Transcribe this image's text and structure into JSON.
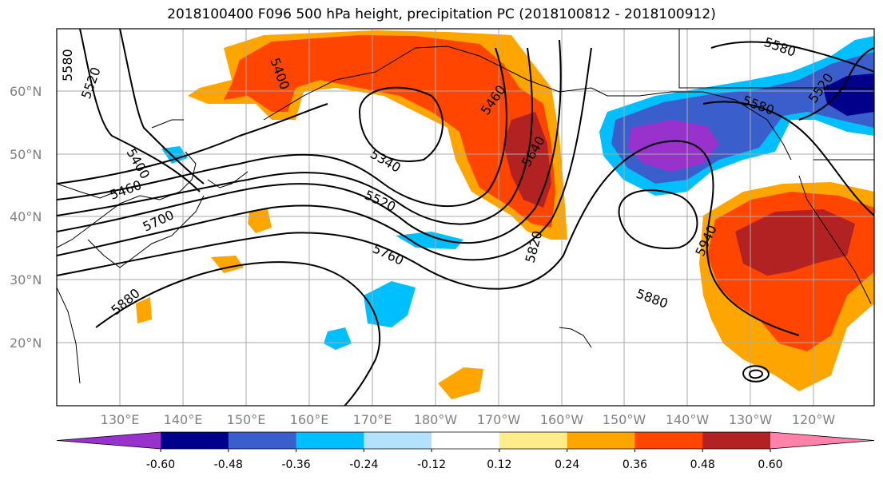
{
  "title": "2018100400 F096 500 hPa height, precipitation PC (2018100812 - 2018100912)",
  "map": {
    "lat_labels": [
      "60°N",
      "50°N",
      "40°N",
      "30°N",
      "20°N"
    ],
    "lon_labels": [
      "130°E",
      "140°E",
      "150°E",
      "160°E",
      "170°E",
      "180°W",
      "170°W",
      "160°W",
      "150°W",
      "140°W",
      "130°W",
      "120°W"
    ],
    "contour_labels": [
      "5580",
      "5520",
      "5400",
      "5400",
      "5460",
      "5700",
      "5340",
      "5520",
      "5760",
      "5880",
      "5460",
      "5640",
      "5820",
      "5880",
      "5940",
      "5580",
      "5580",
      "5520"
    ]
  },
  "colorbar": {
    "colors": [
      "#9932cc",
      "#00008b",
      "#3a5fcd",
      "#00bfff",
      "#b2e2ff",
      "#ffffff",
      "#ffec8b",
      "#ffa500",
      "#ff4500",
      "#b22222",
      "#ff82ab"
    ],
    "tick_labels": [
      "-0.60",
      "-0.48",
      "-0.36",
      "-0.24",
      "-0.12",
      "0.12",
      "0.24",
      "0.36",
      "0.48",
      "0.60"
    ]
  }
}
